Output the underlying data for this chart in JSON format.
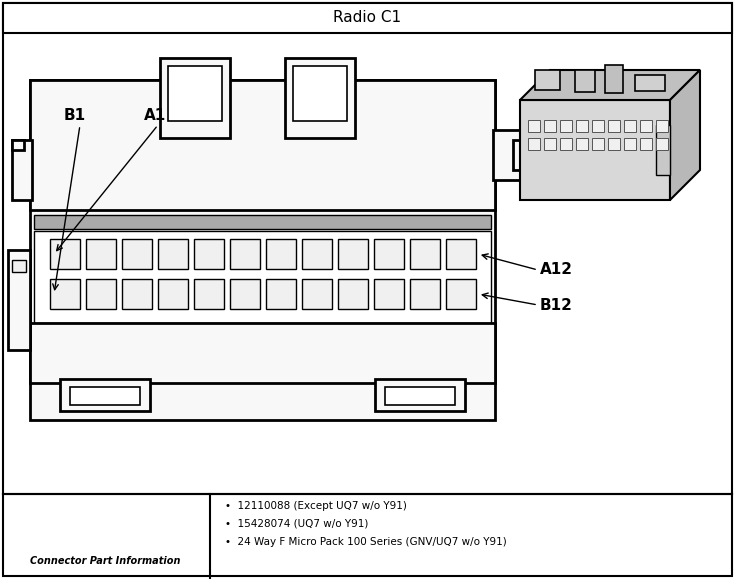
{
  "title": "Radio C1",
  "bg": "#ffffff",
  "lc": "#000000",
  "gray_fill": "#e0e0e0",
  "white_fill": "#ffffff",
  "dark_bar": "#888888",
  "pin_fill": "#f0f0f0",
  "bottom_text_left": "Connector Part Information",
  "bottom_bullets": [
    "12110088 (Except UQ7 w/o Y91)",
    "15428074 (UQ7 w/o Y91)",
    "24 Way F Micro Pack 100 Series (GNV/UQ7 w/o Y91)"
  ],
  "n_cols": 12,
  "n_rows": 2
}
